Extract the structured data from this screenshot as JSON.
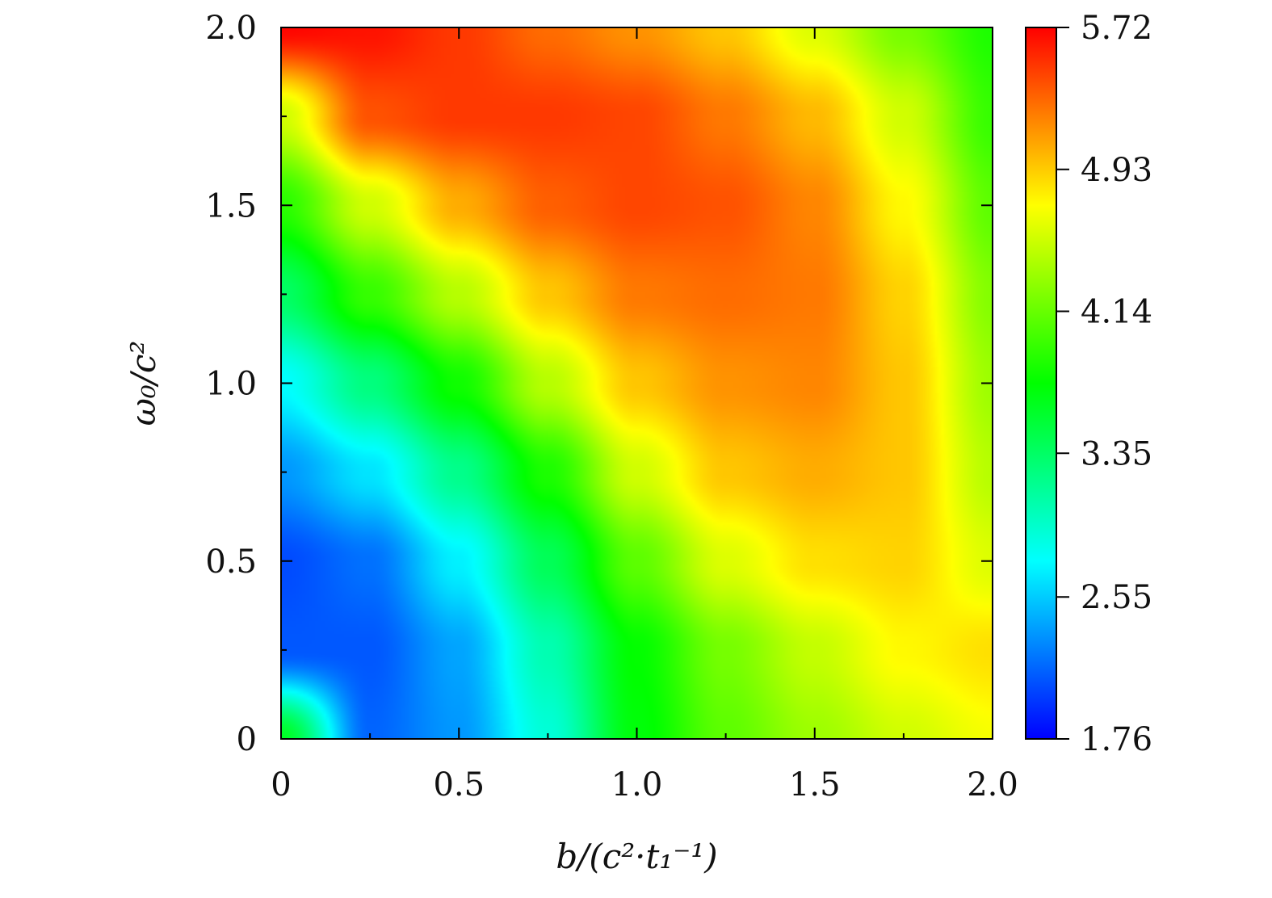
{
  "chart_data": {
    "type": "heatmap",
    "xlabel": "b/(c²·t₁⁻¹)",
    "ylabel": "ω₀/c²",
    "xlim": [
      0,
      2.0
    ],
    "ylim": [
      0,
      2.0
    ],
    "x_ticks": [
      "0",
      "0.5",
      "1.0",
      "1.5",
      "2.0"
    ],
    "y_ticks": [
      "0",
      "0.5",
      "1.0",
      "1.5",
      "2.0"
    ],
    "x_tick_values": [
      0,
      0.5,
      1.0,
      1.5,
      2.0
    ],
    "y_tick_values": [
      0,
      0.5,
      1.0,
      1.5,
      2.0
    ],
    "colorbar": {
      "range": [
        1.76,
        5.72
      ],
      "tick_values": [
        1.76,
        2.55,
        3.35,
        4.14,
        4.93,
        5.72
      ],
      "tick_labels": [
        "1.76",
        "2.55",
        "3.35",
        "4.14",
        "4.93",
        "5.72"
      ],
      "colormap": [
        "#0000ff",
        "#00ffff",
        "#00ff00",
        "#ffff00",
        "#ff0000"
      ]
    },
    "z_grid": {
      "x": [
        0,
        0.25,
        0.5,
        0.75,
        1.0,
        1.25,
        1.5,
        1.75,
        2.0
      ],
      "y": [
        0,
        0.25,
        0.5,
        0.75,
        1.0,
        1.25,
        1.5,
        1.75,
        2.0
      ],
      "values": [
        [
          3.6,
          2.15,
          2.35,
          2.9,
          3.7,
          4.1,
          4.35,
          4.55,
          4.7
        ],
        [
          2.1,
          2.1,
          2.4,
          3.05,
          3.75,
          4.2,
          4.5,
          4.75,
          4.85
        ],
        [
          2.05,
          2.2,
          2.7,
          3.4,
          4.1,
          4.6,
          4.85,
          4.9,
          4.6
        ],
        [
          2.35,
          2.65,
          3.2,
          3.85,
          4.55,
          4.95,
          5.05,
          4.95,
          4.45
        ],
        [
          2.75,
          3.25,
          3.8,
          4.45,
          4.95,
          5.15,
          5.2,
          4.95,
          4.35
        ],
        [
          3.35,
          3.95,
          4.45,
          4.95,
          5.25,
          5.3,
          5.25,
          4.9,
          4.25
        ],
        [
          3.9,
          4.55,
          5.05,
          5.35,
          5.45,
          5.4,
          5.2,
          4.75,
          4.1
        ],
        [
          4.55,
          5.4,
          5.5,
          5.5,
          5.45,
          5.25,
          5.0,
          4.55,
          3.95
        ],
        [
          5.7,
          5.65,
          5.5,
          5.3,
          5.15,
          4.95,
          4.6,
          4.2,
          3.85
        ]
      ]
    }
  }
}
